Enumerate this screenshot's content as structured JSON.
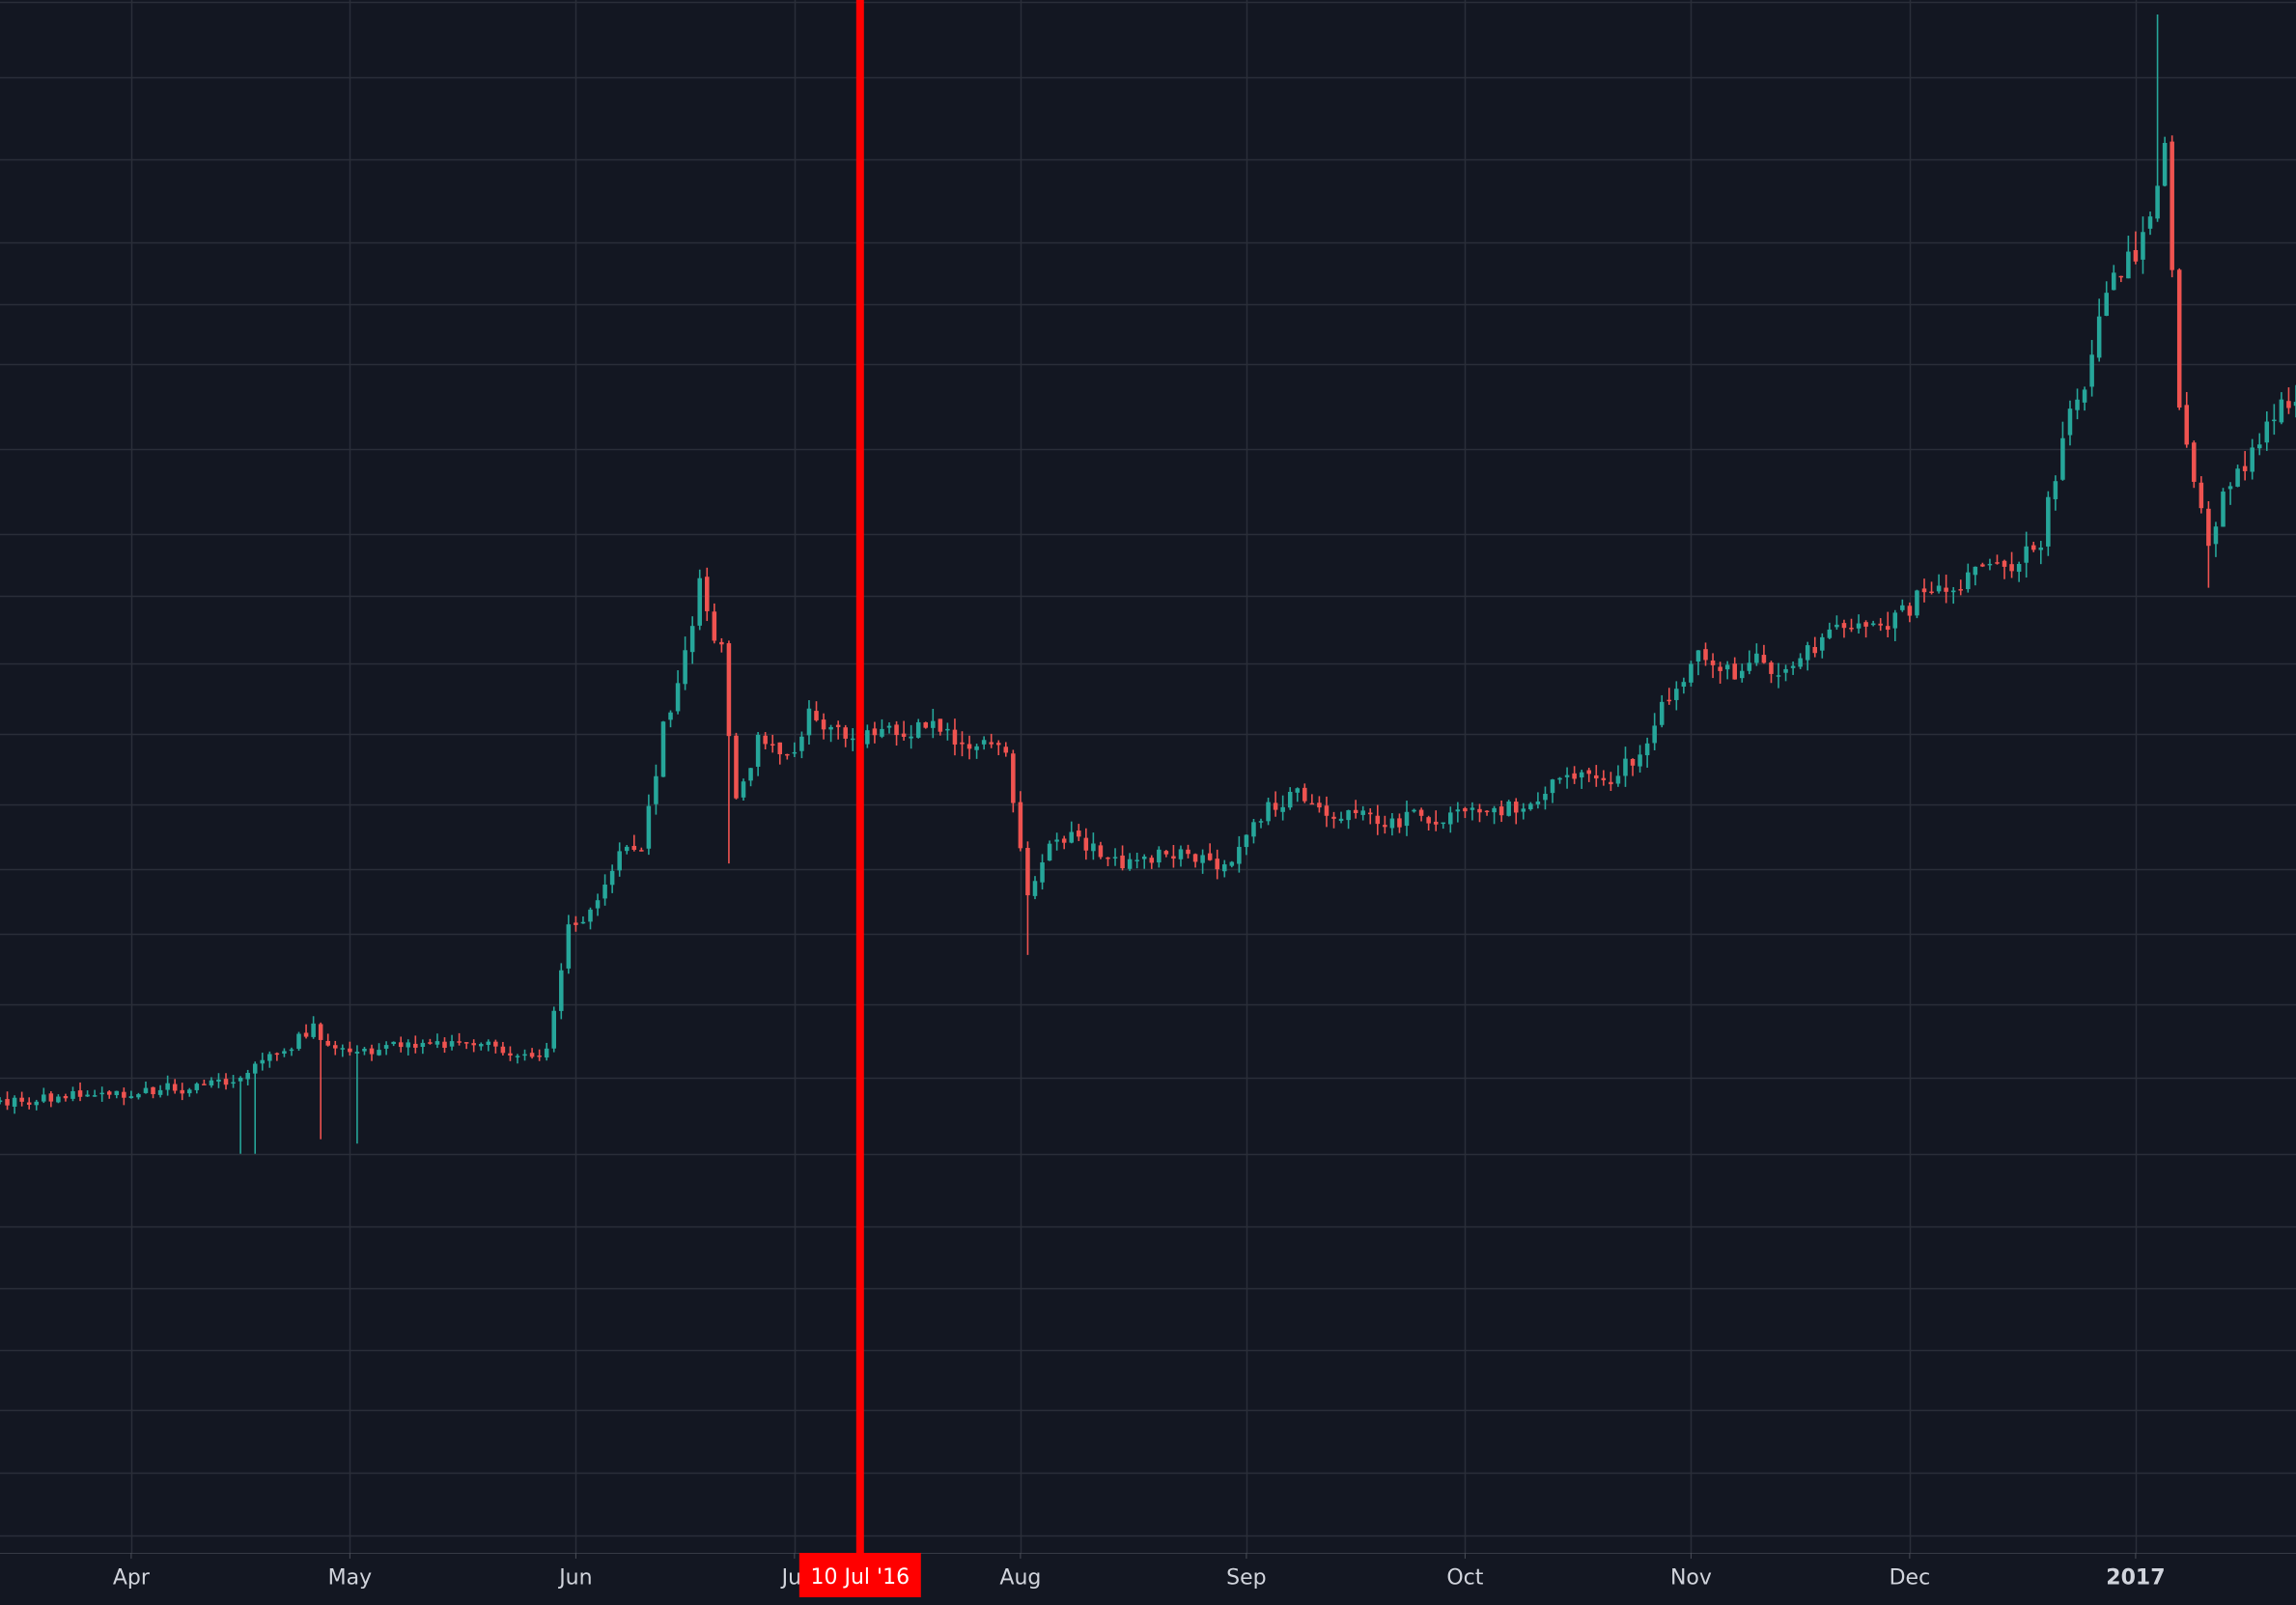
{
  "colors": {
    "background": "#131722",
    "grid": "#2a2e39",
    "up": "#26a69a",
    "down": "#ef5350",
    "axis_text": "#d1d4dc",
    "crosshair": "#ff0000",
    "crosshair_label_bg": "#ff0000",
    "crosshair_label_text": "#ffffff"
  },
  "crosshair": {
    "label": "10 Jul '16",
    "date": "2016-07-10"
  },
  "chart_data": {
    "type": "candlestick",
    "x_range": [
      "2016-03-14",
      "2017-01-23"
    ],
    "grid": true,
    "x_ticks": [
      {
        "date": "2016-04-01",
        "label": "Apr",
        "bold": false
      },
      {
        "date": "2016-05-01",
        "label": "May",
        "bold": false
      },
      {
        "date": "2016-06-01",
        "label": "Jun",
        "bold": false
      },
      {
        "date": "2016-07-01",
        "label": "Jul",
        "bold": false
      },
      {
        "date": "2016-08-01",
        "label": "Aug",
        "bold": false
      },
      {
        "date": "2016-09-01",
        "label": "Sep",
        "bold": false
      },
      {
        "date": "2016-10-01",
        "label": "Oct",
        "bold": false
      },
      {
        "date": "2016-11-01",
        "label": "Nov",
        "bold": false
      },
      {
        "date": "2016-12-01",
        "label": "Dec",
        "bold": false
      },
      {
        "date": "2017-01-01",
        "label": "2017",
        "bold": true
      }
    ],
    "y_axis_labels": "not shown",
    "close_keypoints": [
      [
        "2016-03-14",
        410
      ],
      [
        "2016-04-01",
        418
      ],
      [
        "2016-04-10",
        421
      ],
      [
        "2016-04-16",
        427
      ],
      [
        "2016-04-22",
        446
      ],
      [
        "2016-04-26",
        462
      ],
      [
        "2016-04-28",
        446
      ],
      [
        "2016-05-05",
        447
      ],
      [
        "2016-05-12",
        452
      ],
      [
        "2016-05-20",
        450
      ],
      [
        "2016-05-24",
        440
      ],
      [
        "2016-05-28",
        448
      ],
      [
        "2016-05-31",
        528
      ],
      [
        "2016-06-03",
        545
      ],
      [
        "2016-06-07",
        580
      ],
      [
        "2016-06-10",
        583
      ],
      [
        "2016-06-13",
        670
      ],
      [
        "2016-06-15",
        700
      ],
      [
        "2016-06-18",
        765
      ],
      [
        "2016-06-21",
        720
      ],
      [
        "2016-06-23",
        615
      ],
      [
        "2016-06-26",
        658
      ],
      [
        "2016-06-30",
        647
      ],
      [
        "2016-07-03",
        678
      ],
      [
        "2016-07-06",
        668
      ],
      [
        "2016-07-09",
        658
      ],
      [
        "2016-07-12",
        667
      ],
      [
        "2016-07-16",
        665
      ],
      [
        "2016-07-20",
        672
      ],
      [
        "2016-07-25",
        656
      ],
      [
        "2016-07-30",
        655
      ],
      [
        "2016-08-02",
        550
      ],
      [
        "2016-08-05",
        585
      ],
      [
        "2016-08-08",
        592
      ],
      [
        "2016-08-15",
        572
      ],
      [
        "2016-08-22",
        583
      ],
      [
        "2016-08-29",
        572
      ],
      [
        "2016-09-03",
        608
      ],
      [
        "2016-09-08",
        627
      ],
      [
        "2016-09-13",
        609
      ],
      [
        "2016-09-20",
        605
      ],
      [
        "2016-09-27",
        607
      ],
      [
        "2016-10-05",
        613
      ],
      [
        "2016-10-10",
        617
      ],
      [
        "2016-10-15",
        636
      ],
      [
        "2016-10-21",
        632
      ],
      [
        "2016-10-25",
        652
      ],
      [
        "2016-10-28",
        685
      ],
      [
        "2016-10-31",
        700
      ],
      [
        "2016-11-02",
        725
      ],
      [
        "2016-11-05",
        705
      ],
      [
        "2016-11-10",
        714
      ],
      [
        "2016-11-15",
        706
      ],
      [
        "2016-11-20",
        738
      ],
      [
        "2016-11-25",
        734
      ],
      [
        "2016-11-30",
        748
      ],
      [
        "2016-12-05",
        768
      ],
      [
        "2016-12-10",
        773
      ],
      [
        "2016-12-15",
        780
      ],
      [
        "2016-12-19",
        793
      ],
      [
        "2016-12-22",
        873
      ],
      [
        "2016-12-25",
        895
      ],
      [
        "2016-12-28",
        975
      ],
      [
        "2017-01-01",
        998
      ],
      [
        "2017-01-03",
        1030
      ],
      [
        "2017-01-05",
        1065
      ],
      [
        "2017-01-07",
        895
      ],
      [
        "2017-01-11",
        795
      ],
      [
        "2017-01-13",
        825
      ],
      [
        "2017-01-17",
        860
      ],
      [
        "2017-01-23",
        900
      ]
    ],
    "extreme_wicks": [
      {
        "date": "2016-04-16",
        "low": 375
      },
      {
        "date": "2016-04-18",
        "low": 375
      },
      {
        "date": "2016-04-27",
        "low": 385
      },
      {
        "date": "2016-05-02",
        "low": 382
      },
      {
        "date": "2016-06-22",
        "low": 575
      },
      {
        "date": "2016-08-02",
        "low": 512
      },
      {
        "date": "2017-01-04",
        "high": 1160
      },
      {
        "date": "2017-01-11",
        "low": 765
      }
    ]
  }
}
